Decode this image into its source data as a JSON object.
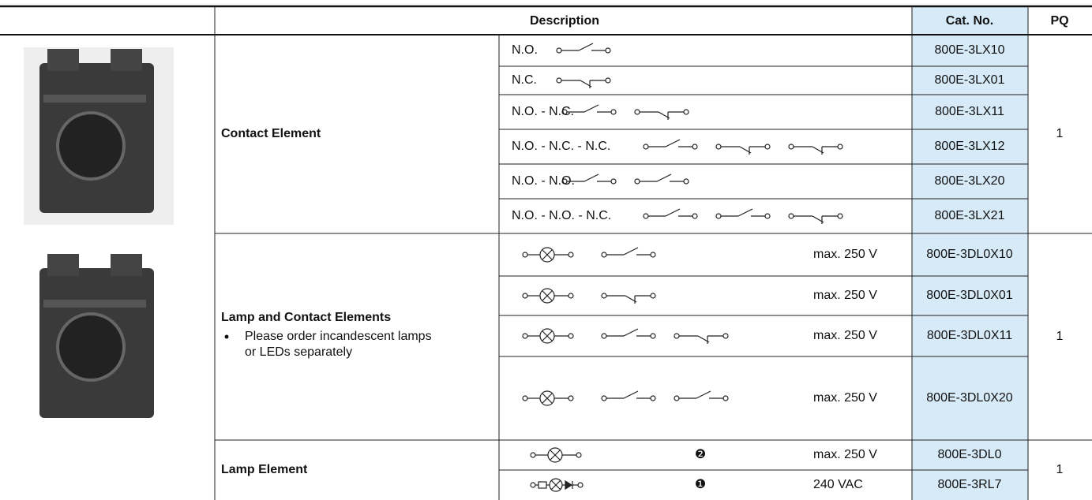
{
  "header": {
    "description": "Description",
    "cat_no": "Cat. No.",
    "pq": "PQ"
  },
  "sections": [
    {
      "title": "Contact Element",
      "pq": "1",
      "rows": [
        {
          "label": "N.O.",
          "cat_no": "800E-3LX10"
        },
        {
          "label": "N.C.",
          "cat_no": "800E-3LX01"
        },
        {
          "label": "N.O. - N.C.",
          "cat_no": "800E-3LX11"
        },
        {
          "label": "N.O. - N.C. - N.C.",
          "cat_no": "800E-3LX12"
        },
        {
          "label": "N.O. - N.O.",
          "cat_no": "800E-3LX20"
        },
        {
          "label": "N.O. - N.O. - N.C.",
          "cat_no": "800E-3LX21"
        }
      ]
    },
    {
      "title": "Lamp and Contact Elements",
      "note_lines": [
        "Please order incandescent lamps",
        "or LEDs separately"
      ],
      "pq": "1",
      "rows": [
        {
          "rating": "max. 250 V",
          "cat_no": "800E-3DL0X10"
        },
        {
          "rating": "max. 250 V",
          "cat_no": "800E-3DL0X01"
        },
        {
          "rating": "max. 250 V",
          "cat_no": "800E-3DL0X11"
        },
        {
          "rating": "max. 250 V",
          "cat_no": "800E-3DL0X20"
        }
      ]
    },
    {
      "title": "Lamp Element",
      "pq": "1",
      "rows": [
        {
          "marker": "❷",
          "rating": "max. 250 V",
          "cat_no": "800E-3DL0"
        },
        {
          "marker": "❶",
          "rating": "240 VAC",
          "cat_no": "800E-3RL7"
        }
      ]
    }
  ]
}
